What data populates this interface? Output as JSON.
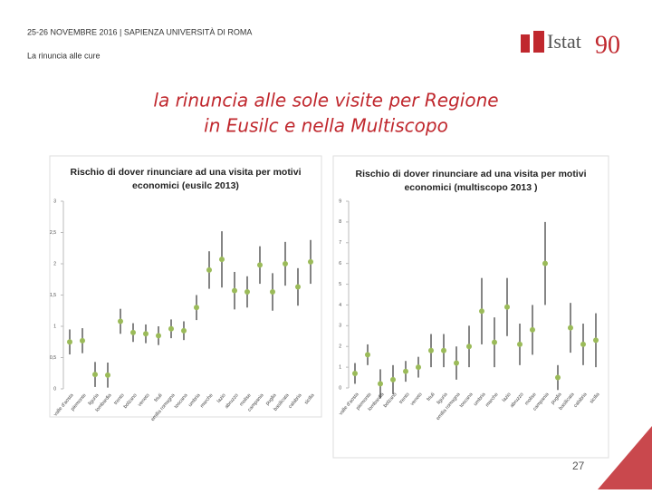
{
  "slide": {
    "header": "25-26 NOVEMBRE 2016 | SAPIENZA UNIVERSITÀ DI ROMA",
    "section": "La rinuncia alle cure",
    "logo": {
      "name": "Istat",
      "mark": "90"
    },
    "title": [
      "la rinuncia alle sole visite per Regione",
      "in Eusilc e nella Multiscopo"
    ],
    "page": "27"
  },
  "chart_data": [
    {
      "type": "scatter",
      "title": [
        "Rischio di dover rinunciare ad una visita per motivi",
        "economici (eusilc 2013)"
      ],
      "categories": [
        "valle d'aosta",
        "piemonte",
        "liguria",
        "lombardia",
        "trento",
        "bolzano",
        "veneto",
        "friuli",
        "emilia romagna",
        "toscana",
        "umbria",
        "marche",
        "lazio",
        "abruzzo",
        "molise",
        "campania",
        "puglia",
        "basilicata",
        "calabria",
        "sicilia"
      ],
      "series": [
        {
          "color": "#9bbb59",
          "values": [
            0.75,
            0.77,
            0.23,
            0.22,
            1.08,
            0.9,
            0.88,
            0.85,
            0.96,
            0.93,
            1.3,
            1.9,
            2.07,
            1.57,
            1.55,
            1.98,
            1.55,
            2.0,
            1.63,
            2.03
          ],
          "errors": [
            0.2,
            0.2,
            0.2,
            0.2,
            0.2,
            0.15,
            0.15,
            0.15,
            0.15,
            0.15,
            0.2,
            0.3,
            0.45,
            0.3,
            0.25,
            0.3,
            0.3,
            0.35,
            0.3,
            0.35
          ]
        }
      ],
      "ylim": [
        0,
        3
      ],
      "yticks": [
        0,
        {
          "value": 0.5,
          "label": "0,5"
        },
        1,
        {
          "value": 1.5,
          "label": "1,5"
        },
        2,
        {
          "value": 2.5,
          "label": "2,5"
        },
        3
      ]
    },
    {
      "type": "scatter",
      "title": [
        "Rischio di dover rinunciare ad una visita per motivi",
        "economici (multiscopo 2013 )"
      ],
      "categories": [
        "valle d'aosta",
        "piemonte",
        "lombardia",
        "bolzano",
        "trento",
        "veneto",
        "friuli",
        "liguria",
        "emilia romagna",
        "toscana",
        "umbria",
        "marche",
        "lazio",
        "abruzzo",
        "molise",
        "campania",
        "puglia",
        "basilicata",
        "calabria",
        "sicilia"
      ],
      "series": [
        {
          "color": "#9bbb59",
          "values": [
            0.7,
            1.6,
            0.2,
            0.4,
            0.8,
            1.0,
            1.8,
            1.8,
            1.2,
            2.0,
            3.7,
            2.2,
            3.9,
            2.1,
            2.8,
            6.0,
            0.5,
            2.9,
            2.1,
            2.3
          ],
          "errors": [
            0.5,
            0.5,
            0.7,
            0.7,
            0.5,
            0.5,
            0.8,
            0.8,
            0.8,
            1.0,
            1.6,
            1.2,
            1.4,
            1.0,
            1.2,
            2.0,
            0.6,
            1.2,
            1.0,
            1.3
          ]
        }
      ],
      "ylim": [
        0,
        9
      ],
      "yticks": [
        0,
        1,
        2,
        3,
        4,
        5,
        6,
        7,
        8,
        9
      ]
    }
  ]
}
